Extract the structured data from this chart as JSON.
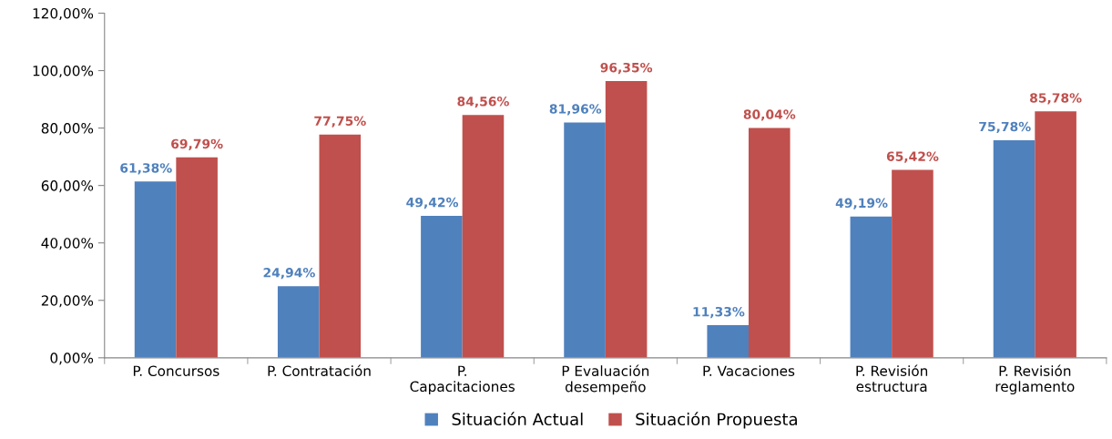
{
  "chart_data": {
    "type": "bar",
    "categories": [
      "P. Concursos",
      "P. Contratación",
      "P.\nCapacitaciones",
      "P Evaluación\ndesempeño",
      "P. Vacaciones",
      "P. Revisión\nestructura",
      "P. Revisión\nreglamento"
    ],
    "series": [
      {
        "name": "Situación Actual",
        "color": "#4f81bd",
        "values": [
          61.38,
          24.94,
          49.42,
          81.96,
          11.33,
          49.19,
          75.78
        ],
        "value_labels": [
          "61,38%",
          "24,94%",
          "49,42%",
          "81,96%",
          "11,33%",
          "49,19%",
          "75,78%"
        ]
      },
      {
        "name": "Situación Propuesta",
        "color": "#c0504d",
        "values": [
          69.79,
          77.75,
          84.56,
          96.35,
          80.04,
          65.42,
          85.78
        ],
        "value_labels": [
          "69,79%",
          "77,75%",
          "84,56%",
          "96,35%",
          "80,04%",
          "65,42%",
          "85,78%"
        ]
      }
    ],
    "ylim": [
      0,
      120
    ],
    "yticks": [
      {
        "value": 0,
        "label": "0,00%"
      },
      {
        "value": 20,
        "label": "20,00%"
      },
      {
        "value": 40,
        "label": "40,00%"
      },
      {
        "value": 60,
        "label": "60,00%"
      },
      {
        "value": 80,
        "label": "80,00%"
      },
      {
        "value": 100,
        "label": "100,00%"
      },
      {
        "value": 120,
        "label": "120,00%"
      }
    ],
    "grid": false,
    "legend": "bottom"
  }
}
